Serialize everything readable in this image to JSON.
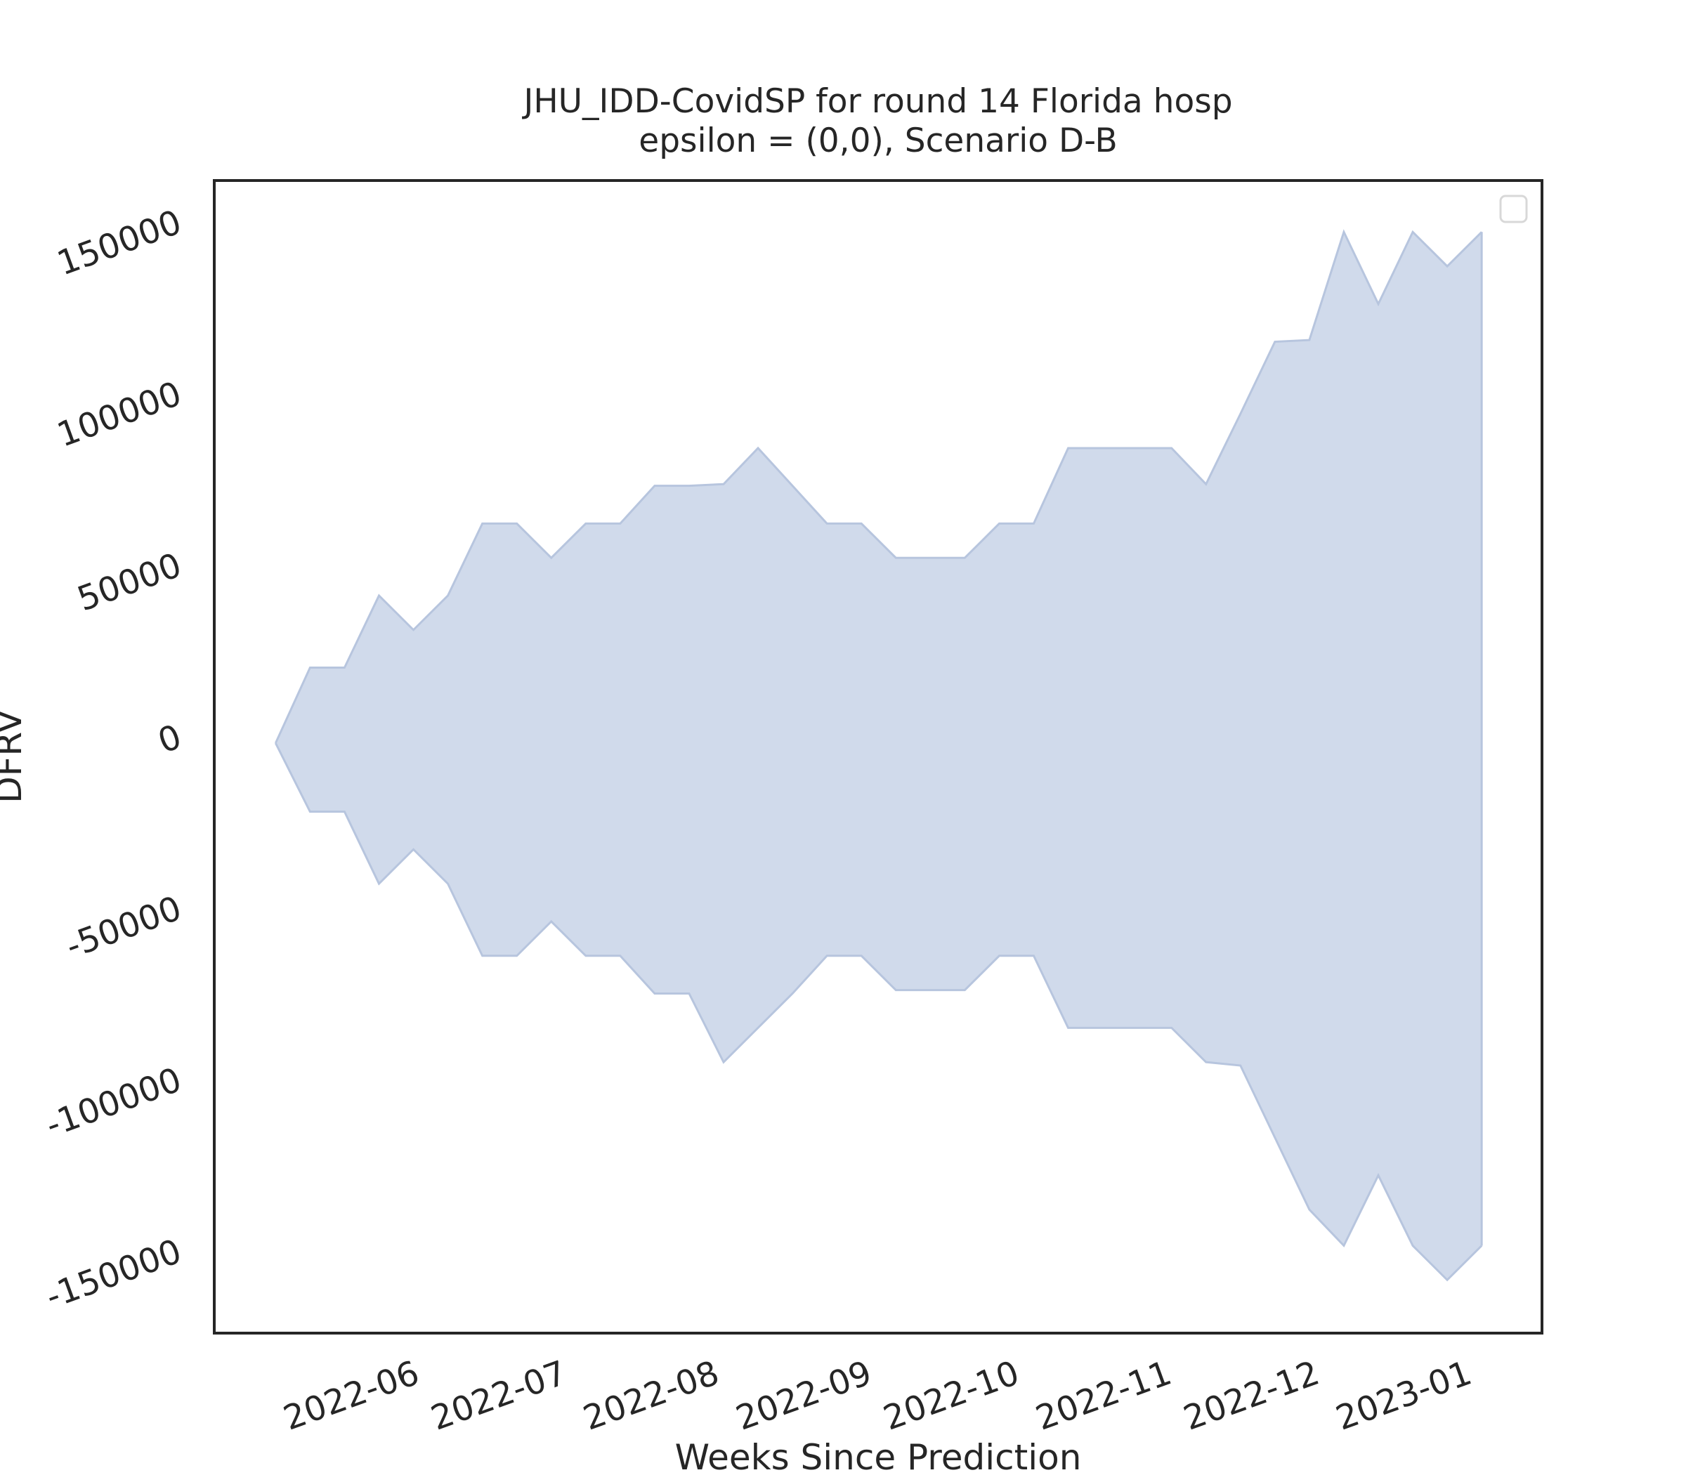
{
  "chart_data": {
    "type": "band",
    "title": "JHU_IDD-CovidSP for round 14 Florida hosp",
    "subtitle": "epsilon = (0,0), Scenario D-B",
    "x_label": "Weeks Since Prediction",
    "y_label": "DFRV",
    "x": [
      0,
      1,
      2,
      3,
      4,
      5,
      6,
      7,
      8,
      9,
      10,
      11,
      12,
      13,
      14,
      15,
      16,
      17,
      18,
      19,
      20,
      21,
      22,
      23,
      24,
      25,
      26,
      27,
      28,
      29,
      30,
      31,
      32,
      33,
      34,
      35
    ],
    "upper": [
      0,
      22000,
      22000,
      43000,
      33000,
      43000,
      64000,
      64000,
      54000,
      64000,
      64000,
      75000,
      75000,
      75500,
      86000,
      75000,
      64000,
      64000,
      54000,
      54000,
      54000,
      64000,
      64000,
      86000,
      86000,
      86000,
      86000,
      75500,
      96000,
      117000,
      117500,
      149000,
      128000,
      149000,
      139000,
      149000
    ],
    "lower": [
      0,
      -20000,
      -20000,
      -41000,
      -31000,
      -41000,
      -62000,
      -62000,
      -52000,
      -62000,
      -62000,
      -73000,
      -73000,
      -93000,
      -83000,
      -73000,
      -62000,
      -62000,
      -72000,
      -72000,
      -72000,
      -62000,
      -62000,
      -83000,
      -83000,
      -83000,
      -83000,
      -93000,
      -94000,
      -115000,
      -136000,
      -146500,
      -126000,
      -146500,
      -156500,
      -146500
    ],
    "color": "#d0daeb",
    "edgecolor": "#b7c5de",
    "xlim": [
      -1.78,
      36.75
    ],
    "xticks": [
      {
        "value": 2.22,
        "label": "2022-06"
      },
      {
        "value": 6.5,
        "label": "2022-07"
      },
      {
        "value": 10.92,
        "label": "2022-08"
      },
      {
        "value": 15.35,
        "label": "2022-09"
      },
      {
        "value": 19.63,
        "label": "2022-10"
      },
      {
        "value": 24.05,
        "label": "2022-11"
      },
      {
        "value": 28.34,
        "label": "2022-12"
      },
      {
        "value": 32.76,
        "label": "2023-01"
      }
    ],
    "ylim": [
      -172000,
      164000
    ],
    "yticks": [
      -150000,
      -100000,
      -50000,
      0,
      50000,
      100000,
      150000
    ],
    "grid": false
  }
}
